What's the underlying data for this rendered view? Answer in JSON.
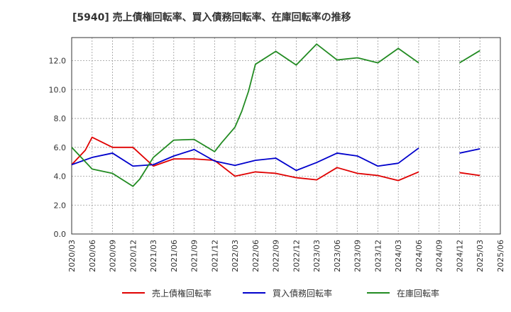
{
  "chart_data": {
    "type": "line",
    "title": "[5940]  売上債権回転率、買入債務回転率、在庫回転率の推移",
    "xlabel": "",
    "ylabel": "",
    "ylim": [
      0,
      13.6
    ],
    "yticks": [
      0.0,
      2.0,
      4.0,
      6.0,
      8.0,
      10.0,
      12.0
    ],
    "ytick_labels": [
      "0.0",
      "2.0",
      "4.0",
      "6.0",
      "8.0",
      "10.0",
      "12.0"
    ],
    "categories": [
      "2020/03",
      "2020/06",
      "2020/09",
      "2020/12",
      "2021/03",
      "2021/06",
      "2021/09",
      "2021/12",
      "2022/03",
      "2022/06",
      "2022/09",
      "2022/12",
      "2023/03",
      "2023/06",
      "2023/09",
      "2023/12",
      "2024/03",
      "2024/06",
      "2024/09",
      "2024/12",
      "2025/03",
      "2025/06"
    ],
    "legend_position": "bottom",
    "grid": true,
    "series": [
      {
        "name": "売上債権回転率",
        "color": "#e00000",
        "x": [
          "2020/03",
          "2020/05",
          "2020/06",
          "2020/09",
          "2020/12",
          "2021/03",
          "2021/06",
          "2021/09",
          "2021/12",
          "2022/03",
          "2022/06",
          "2022/09",
          "2022/12",
          "2023/03",
          "2023/06",
          "2023/09",
          "2023/12",
          "2024/03",
          "2024/06",
          null,
          "2024/12",
          "2025/03"
        ],
        "values": [
          4.8,
          5.8,
          6.7,
          6.0,
          6.0,
          4.7,
          5.2,
          5.2,
          5.1,
          4.0,
          4.3,
          4.2,
          3.9,
          3.75,
          4.6,
          4.2,
          4.05,
          3.7,
          4.3,
          null,
          4.25,
          4.05
        ]
      },
      {
        "name": "買入債務回転率",
        "color": "#0000cc",
        "x": [
          "2020/03",
          "2020/06",
          "2020/09",
          "2020/12",
          "2021/03",
          "2021/06",
          "2021/09",
          "2021/12",
          "2022/03",
          "2022/06",
          "2022/09",
          "2022/12",
          "2023/03",
          "2023/06",
          "2023/09",
          "2023/12",
          "2024/03",
          "2024/06",
          null,
          "2024/12",
          "2025/03"
        ],
        "values": [
          4.8,
          5.3,
          5.6,
          4.7,
          4.8,
          5.4,
          5.85,
          5.05,
          4.75,
          5.1,
          5.25,
          4.4,
          4.95,
          5.6,
          5.4,
          4.7,
          4.9,
          5.95,
          null,
          5.6,
          5.9
        ]
      },
      {
        "name": "在庫回転率",
        "color": "#228b22",
        "x": [
          "2020/03",
          "2020/06",
          "2020/09",
          "2020/12",
          "2021/01",
          "2021/03",
          "2021/06",
          "2021/09",
          "2021/12",
          "2022/01",
          "2022/03",
          "2022/04",
          "2022/05",
          "2022/06",
          "2022/09",
          "2022/12",
          "2023/03",
          "2023/06",
          "2023/09",
          "2023/12",
          "2024/03",
          "2024/06",
          null,
          "2024/12",
          "2025/03"
        ],
        "values": [
          6.0,
          4.5,
          4.2,
          3.3,
          3.8,
          5.3,
          6.5,
          6.55,
          5.7,
          6.3,
          7.4,
          8.5,
          9.9,
          11.75,
          12.65,
          11.7,
          13.15,
          12.05,
          12.2,
          11.85,
          12.85,
          11.85,
          null,
          11.85,
          12.7
        ]
      }
    ]
  }
}
